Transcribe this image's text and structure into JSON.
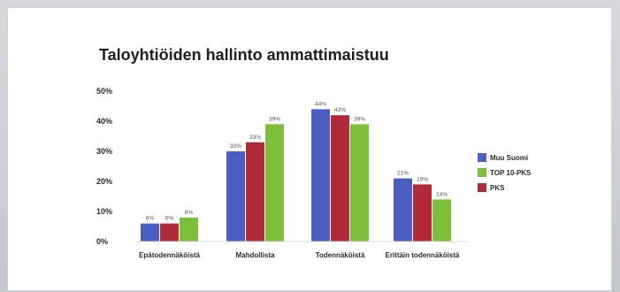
{
  "chart_data": {
    "type": "bar",
    "title": "Taloyhtiöiden hallinto ammattimaistuu",
    "categories": [
      "Epätodennäköistä",
      "Mahdollista",
      "Todennäköistä",
      "Erittäin todennäköistä"
    ],
    "series": [
      {
        "name": "Muu Suomi",
        "color": "#4a5fc1",
        "values": [
          6,
          30,
          44,
          21
        ],
        "labels": [
          "6%",
          "30%",
          "44%",
          "21%"
        ]
      },
      {
        "name": "TOP 10-PKS",
        "color": "#7dbe3a",
        "values": [
          8,
          39,
          39,
          14
        ],
        "labels": [
          "8%",
          "39%",
          "39%",
          "14%"
        ]
      },
      {
        "name": "PKS",
        "color": "#b02a3a",
        "values": [
          6,
          33,
          42,
          19
        ],
        "labels": [
          "6%",
          "33%",
          "42%",
          "19%"
        ]
      }
    ],
    "draw_order": [
      0,
      2,
      1
    ],
    "ylim": [
      0,
      50
    ],
    "yticks": [
      "0%",
      "10%",
      "20%",
      "30%",
      "40%",
      "50%"
    ],
    "legend_position": "right",
    "grid": false
  }
}
